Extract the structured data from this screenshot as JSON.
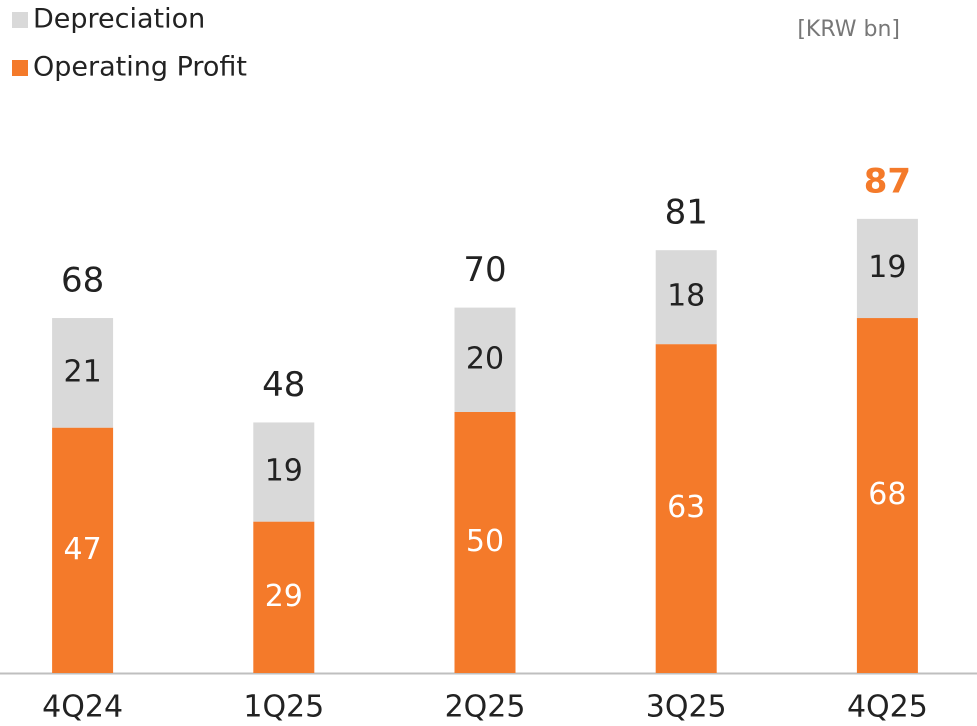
{
  "chart_data": {
    "type": "stacked_bar",
    "unit": "[KRW bn]",
    "categories": [
      "4Q24",
      "1Q25",
      "2Q25",
      "3Q25",
      "4Q25"
    ],
    "series": [
      {
        "name": "Operating Profit",
        "color": "#f47a2a",
        "label_color": "#ffffff",
        "values": [
          47,
          29,
          50,
          63,
          68
        ]
      },
      {
        "name": "Depreciation",
        "color": "#d9d9d9",
        "label_color": "#222222",
        "values": [
          21,
          19,
          20,
          18,
          19
        ]
      }
    ],
    "totals": [
      68,
      48,
      70,
      81,
      87
    ],
    "total_colors": [
      "#222222",
      "#222222",
      "#222222",
      "#222222",
      "#f47a2a"
    ],
    "ylim": [
      0,
      100
    ]
  }
}
